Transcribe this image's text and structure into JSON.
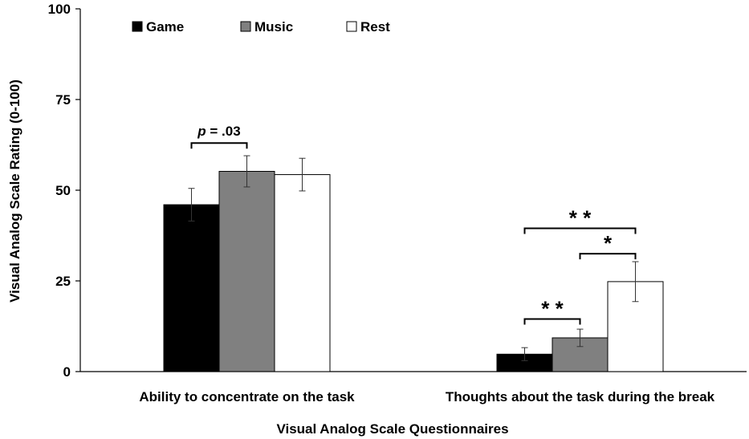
{
  "chart_data": {
    "type": "bar",
    "xlabel": "Visual Analog Scale Questionnaires",
    "ylabel": "Visual Analog Scale Rating (0-100)",
    "ylim": [
      0,
      100
    ],
    "yticks": [
      "0",
      "25",
      "50",
      "75",
      "100"
    ],
    "ytick_values": [
      0,
      25,
      50,
      75,
      100
    ],
    "grid": false,
    "legend_position": "top-left",
    "categories": [
      "Ability to concentrate on the task",
      "Thoughts about the task during the break"
    ],
    "series": [
      {
        "name": "Game",
        "color": "#000000",
        "values": [
          46.0,
          4.8
        ],
        "errors": [
          4.5,
          1.8
        ]
      },
      {
        "name": "Music",
        "color": "#808080",
        "values": [
          55.2,
          9.3
        ],
        "errors": [
          4.3,
          2.4
        ]
      },
      {
        "name": "Rest",
        "color": "#ffffff",
        "values": [
          54.3,
          24.8
        ],
        "errors": [
          4.5,
          5.5
        ]
      }
    ],
    "annotations": [
      {
        "label_parts": [
          {
            "text": "p",
            "italic": true
          },
          {
            "text": " = .03",
            "italic": false
          }
        ],
        "category": 0,
        "from_series": 0,
        "to_series": 1,
        "y": 63
      },
      {
        "label_parts": [
          {
            "text": "* *",
            "italic": false
          }
        ],
        "category": 1,
        "from_series": 0,
        "to_series": 2,
        "y": 39.5
      },
      {
        "label_parts": [
          {
            "text": "*",
            "italic": false
          }
        ],
        "category": 1,
        "from_series": 1,
        "to_series": 2,
        "y": 32.5
      },
      {
        "label_parts": [
          {
            "text": "* *",
            "italic": false
          }
        ],
        "category": 1,
        "from_series": 0,
        "to_series": 1,
        "y": 14.5
      }
    ]
  }
}
